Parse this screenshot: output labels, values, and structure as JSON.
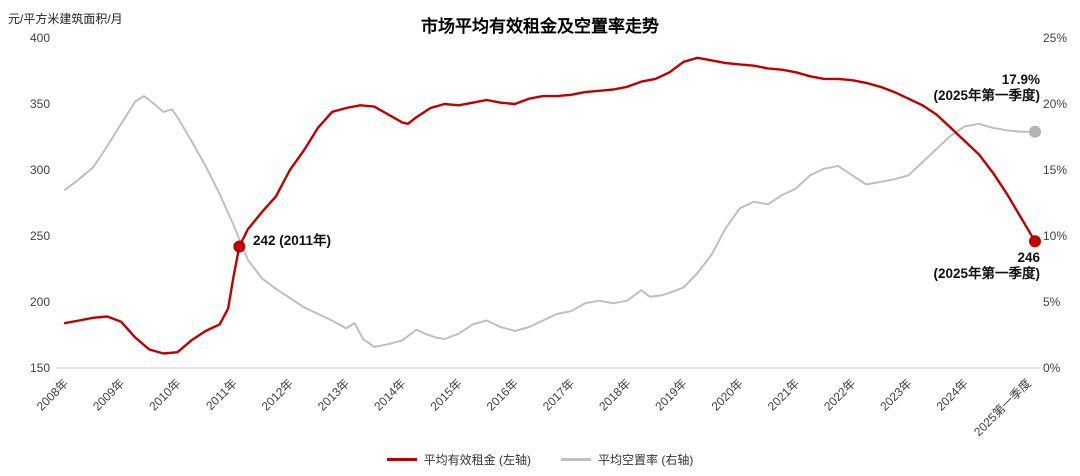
{
  "title": "市场平均有效租金及空置率走势",
  "unit_label": "元/平方米建筑面积/月",
  "annotations": {
    "rent_2011": {
      "text": "242 (2011年)"
    },
    "vacancy_latest": {
      "line1": "17.9%",
      "line2": "(2025年第一季度)"
    },
    "rent_latest": {
      "line1": "246",
      "line2": "(2025年第一季度)"
    }
  },
  "chart_data": {
    "type": "line",
    "title": "市场平均有效租金及空置率走势",
    "left_axis": {
      "label": "元/平方米建筑面积/月",
      "min": 150,
      "max": 400,
      "ticks": [
        150,
        200,
        250,
        300,
        350,
        400
      ]
    },
    "right_axis": {
      "min": 0,
      "max": 25,
      "tick_values": [
        0,
        5,
        10,
        15,
        20,
        25
      ],
      "tick_labels": [
        "0%",
        "5%",
        "10%",
        "15%",
        "20%",
        "25%"
      ]
    },
    "x_axis": {
      "min": 2008,
      "max": 2025.25,
      "labels": [
        "2008年",
        "2009年",
        "2010年",
        "2011年",
        "2012年",
        "2013年",
        "2014年",
        "2015年",
        "2016年",
        "2017年",
        "2018年",
        "2019年",
        "2020年",
        "2021年",
        "2022年",
        "2023年",
        "2024年",
        "2025第一季度"
      ],
      "positions": [
        2008,
        2009,
        2010,
        2011,
        2012,
        2013,
        2014,
        2015,
        2016,
        2017,
        2018,
        2019,
        2020,
        2021,
        2022,
        2023,
        2024,
        2025.12
      ]
    },
    "series": [
      {
        "name": "平均空置率 (右轴)",
        "axis": "right",
        "color": "#bfbfbf",
        "width": 2,
        "points": [
          [
            2008,
            13.5
          ],
          [
            2008.25,
            14.3
          ],
          [
            2008.5,
            15.2
          ],
          [
            2008.75,
            16.8
          ],
          [
            2009,
            18.5
          ],
          [
            2009.25,
            20.2
          ],
          [
            2009.4,
            20.6
          ],
          [
            2009.5,
            20.3
          ],
          [
            2009.75,
            19.4
          ],
          [
            2009.9,
            19.6
          ],
          [
            2010,
            19.0
          ],
          [
            2010.25,
            17.2
          ],
          [
            2010.5,
            15.3
          ],
          [
            2010.75,
            13.2
          ],
          [
            2011,
            10.8
          ],
          [
            2011.25,
            8.2
          ],
          [
            2011.5,
            6.8
          ],
          [
            2011.75,
            6.0
          ],
          [
            2012,
            5.3
          ],
          [
            2012.25,
            4.6
          ],
          [
            2012.5,
            4.1
          ],
          [
            2012.75,
            3.6
          ],
          [
            2013,
            3.0
          ],
          [
            2013.15,
            3.4
          ],
          [
            2013.3,
            2.2
          ],
          [
            2013.5,
            1.6
          ],
          [
            2013.75,
            1.8
          ],
          [
            2014,
            2.1
          ],
          [
            2014.25,
            2.9
          ],
          [
            2014.4,
            2.6
          ],
          [
            2014.6,
            2.3
          ],
          [
            2014.75,
            2.2
          ],
          [
            2015,
            2.6
          ],
          [
            2015.25,
            3.3
          ],
          [
            2015.5,
            3.6
          ],
          [
            2015.75,
            3.1
          ],
          [
            2016,
            2.8
          ],
          [
            2016.25,
            3.1
          ],
          [
            2016.5,
            3.6
          ],
          [
            2016.75,
            4.1
          ],
          [
            2017,
            4.3
          ],
          [
            2017.25,
            4.9
          ],
          [
            2017.5,
            5.1
          ],
          [
            2017.75,
            4.9
          ],
          [
            2018,
            5.1
          ],
          [
            2018.25,
            5.9
          ],
          [
            2018.4,
            5.4
          ],
          [
            2018.6,
            5.5
          ],
          [
            2018.75,
            5.7
          ],
          [
            2019,
            6.1
          ],
          [
            2019.25,
            7.2
          ],
          [
            2019.5,
            8.6
          ],
          [
            2019.75,
            10.6
          ],
          [
            2020,
            12.1
          ],
          [
            2020.25,
            12.6
          ],
          [
            2020.5,
            12.4
          ],
          [
            2020.75,
            13.1
          ],
          [
            2021,
            13.6
          ],
          [
            2021.25,
            14.6
          ],
          [
            2021.5,
            15.1
          ],
          [
            2021.75,
            15.3
          ],
          [
            2022,
            14.6
          ],
          [
            2022.25,
            13.9
          ],
          [
            2022.5,
            14.1
          ],
          [
            2022.75,
            14.3
          ],
          [
            2023,
            14.6
          ],
          [
            2023.25,
            15.6
          ],
          [
            2023.5,
            16.6
          ],
          [
            2023.75,
            17.6
          ],
          [
            2024,
            18.3
          ],
          [
            2024.25,
            18.5
          ],
          [
            2024.5,
            18.2
          ],
          [
            2024.75,
            18.0
          ],
          [
            2025,
            17.9
          ],
          [
            2025.25,
            17.9
          ]
        ]
      },
      {
        "name": "平均有效租金 (左轴)",
        "axis": "left",
        "color": "#c00000",
        "width": 2.4,
        "points": [
          [
            2008,
            184
          ],
          [
            2008.25,
            186
          ],
          [
            2008.5,
            188
          ],
          [
            2008.75,
            189
          ],
          [
            2009,
            185
          ],
          [
            2009.25,
            173
          ],
          [
            2009.5,
            164
          ],
          [
            2009.75,
            161
          ],
          [
            2010,
            162
          ],
          [
            2010.25,
            171
          ],
          [
            2010.5,
            178
          ],
          [
            2010.75,
            183
          ],
          [
            2010.9,
            195
          ],
          [
            2011,
            220
          ],
          [
            2011.1,
            242
          ],
          [
            2011.25,
            255
          ],
          [
            2011.5,
            268
          ],
          [
            2011.75,
            280
          ],
          [
            2012,
            300
          ],
          [
            2012.25,
            315
          ],
          [
            2012.5,
            332
          ],
          [
            2012.75,
            344
          ],
          [
            2013,
            347
          ],
          [
            2013.25,
            349
          ],
          [
            2013.5,
            348
          ],
          [
            2013.75,
            342
          ],
          [
            2014,
            336
          ],
          [
            2014.1,
            335
          ],
          [
            2014.25,
            340
          ],
          [
            2014.5,
            347
          ],
          [
            2014.75,
            350
          ],
          [
            2015,
            349
          ],
          [
            2015.25,
            351
          ],
          [
            2015.5,
            353
          ],
          [
            2015.75,
            351
          ],
          [
            2016,
            350
          ],
          [
            2016.25,
            354
          ],
          [
            2016.5,
            356
          ],
          [
            2016.75,
            356
          ],
          [
            2017,
            357
          ],
          [
            2017.25,
            359
          ],
          [
            2017.5,
            360
          ],
          [
            2017.75,
            361
          ],
          [
            2018,
            363
          ],
          [
            2018.25,
            367
          ],
          [
            2018.5,
            369
          ],
          [
            2018.75,
            374
          ],
          [
            2019,
            382
          ],
          [
            2019.25,
            385
          ],
          [
            2019.5,
            383
          ],
          [
            2019.75,
            381
          ],
          [
            2020,
            380
          ],
          [
            2020.25,
            379
          ],
          [
            2020.5,
            377
          ],
          [
            2020.75,
            376
          ],
          [
            2021,
            374
          ],
          [
            2021.25,
            371
          ],
          [
            2021.5,
            369
          ],
          [
            2021.75,
            369
          ],
          [
            2022,
            368
          ],
          [
            2022.25,
            366
          ],
          [
            2022.5,
            363
          ],
          [
            2022.75,
            359
          ],
          [
            2023,
            354
          ],
          [
            2023.25,
            349
          ],
          [
            2023.5,
            342
          ],
          [
            2023.75,
            332
          ],
          [
            2024,
            322
          ],
          [
            2024.25,
            312
          ],
          [
            2024.5,
            298
          ],
          [
            2024.75,
            282
          ],
          [
            2025,
            264
          ],
          [
            2025.25,
            246
          ]
        ]
      }
    ],
    "markers": [
      {
        "x": 2011.1,
        "value": 242,
        "axis": "left",
        "color": "#c00000",
        "r": 6,
        "label": "242 (2011年)"
      },
      {
        "x": 2025.25,
        "value": 246,
        "axis": "left",
        "color": "#c00000",
        "r": 6,
        "label": "246 (2025年第一季度)"
      },
      {
        "x": 2025.25,
        "value": 17.9,
        "axis": "right",
        "color": "#b3b3b3",
        "r": 6,
        "label": "17.9% (2025年第一季度)"
      }
    ],
    "legend": [
      "平均有效租金 (左轴)",
      "平均空置率 (右轴)"
    ],
    "grid": false,
    "legend_position": "bottom"
  }
}
